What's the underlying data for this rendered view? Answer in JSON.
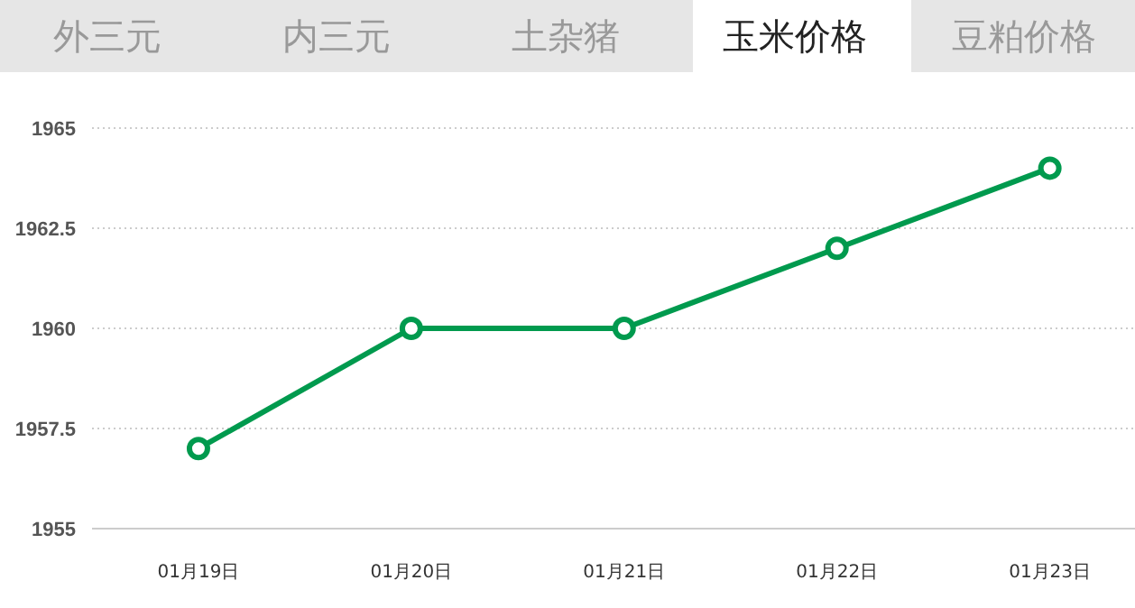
{
  "chart_data": {
    "type": "line",
    "categories": [
      "01月19日",
      "01月20日",
      "01月21日",
      "01月22日",
      "01月23日"
    ],
    "series": [
      {
        "color": "#009a4e",
        "values": [
          1957,
          1960,
          1960,
          1962,
          1964
        ]
      }
    ],
    "ylim": [
      1955,
      1965
    ],
    "yticks": [
      1955,
      1957.5,
      1960,
      1962.5,
      1965
    ],
    "grid": "y",
    "marker": "circle",
    "line_style": "solid",
    "annotations": [
      "外三元",
      "内三元",
      "土杂猪",
      "玉米价格",
      "豆粕价格"
    ]
  }
}
